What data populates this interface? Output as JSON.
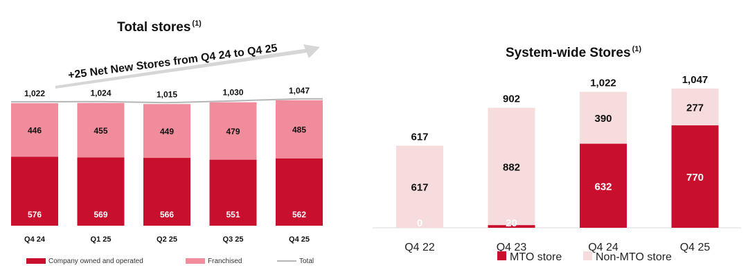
{
  "chart_data": [
    {
      "type": "bar",
      "stacked": true,
      "title": "Total stores",
      "title_note": "(1)",
      "annotation": "+25 Net New Stores from Q4 24 to Q4 25",
      "categories": [
        "Q4 24",
        "Q1 25",
        "Q2 25",
        "Q3 25",
        "Q4 25"
      ],
      "series": [
        {
          "name": "Company owned and operated",
          "values": [
            576,
            569,
            566,
            551,
            562
          ],
          "color": "#c8102e"
        },
        {
          "name": "Franchised",
          "values": [
            446,
            455,
            449,
            479,
            485
          ],
          "color": "#f08c9c"
        }
      ],
      "totals": [
        1022,
        1024,
        1015,
        1030,
        1047
      ],
      "totals_labels": [
        "1,022",
        "1,024",
        "1,015",
        "1,030",
        "1,047"
      ],
      "total_series_name": "Total",
      "total_line_color": "#b5b5b5",
      "legend_position": "bottom",
      "grid": false
    },
    {
      "type": "bar",
      "stacked": true,
      "title": "System-wide Stores",
      "title_note": "(1)",
      "categories": [
        "Q4 22",
        "Q4 23",
        "Q4 24",
        "Q4 25"
      ],
      "series": [
        {
          "name": "MTO store",
          "values": [
            0,
            20,
            632,
            770
          ],
          "color": "#c8102e"
        },
        {
          "name": "Non-MTO store",
          "values": [
            617,
            882,
            390,
            277
          ],
          "color": "#f6dcdc"
        }
      ],
      "totals_labels": [
        "617",
        "902",
        "1,022",
        "1,047"
      ],
      "legend_position": "bottom",
      "grid": false
    }
  ]
}
